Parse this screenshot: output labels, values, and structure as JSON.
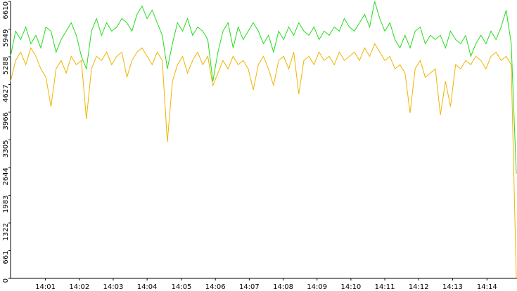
{
  "chart_data": {
    "type": "line",
    "xlim": [
      0,
      100
    ],
    "xticks": [
      {
        "value": 6.9,
        "label": "14:01"
      },
      {
        "value": 13.6,
        "label": "14:02"
      },
      {
        "value": 20.3,
        "label": "14:03"
      },
      {
        "value": 27.0,
        "label": "14:04"
      },
      {
        "value": 33.8,
        "label": "14:05"
      },
      {
        "value": 40.5,
        "label": "14:06"
      },
      {
        "value": 47.2,
        "label": "14:07"
      },
      {
        "value": 53.9,
        "label": "14:08"
      },
      {
        "value": 60.6,
        "label": "14:09"
      },
      {
        "value": 67.3,
        "label": "14:10"
      },
      {
        "value": 74.0,
        "label": "14:11"
      },
      {
        "value": 80.7,
        "label": "14:12"
      },
      {
        "value": 87.4,
        "label": "14:13"
      },
      {
        "value": 94.2,
        "label": "14:14"
      }
    ],
    "ylim": [
      0,
      6610
    ],
    "yticks": [
      0,
      661,
      1322,
      1983,
      2644,
      3305,
      3966,
      4627,
      5288,
      5949,
      6610
    ],
    "series": [
      {
        "color": "#22dd1a",
        "values": [
          5300,
          5900,
          5700,
          6000,
          5600,
          5800,
          5500,
          6000,
          5900,
          5400,
          5700,
          5900,
          6100,
          5800,
          5300,
          5000,
          5900,
          6200,
          5800,
          6100,
          5900,
          6000,
          6200,
          6100,
          5900,
          6300,
          6500,
          6200,
          6400,
          6100,
          5800,
          5000,
          5600,
          6100,
          5900,
          6200,
          5800,
          6000,
          5900,
          5700,
          4700,
          5400,
          5900,
          6100,
          5500,
          6000,
          5700,
          5900,
          6100,
          5900,
          5600,
          5800,
          5400,
          5900,
          5700,
          6000,
          5800,
          6100,
          5900,
          5800,
          6000,
          5700,
          5900,
          5800,
          6000,
          5900,
          6200,
          6000,
          5900,
          6100,
          6300,
          6000,
          6610,
          6200,
          5900,
          6100,
          5700,
          5500,
          5800,
          5500,
          5900,
          6000,
          5600,
          5800,
          5700,
          5800,
          5500,
          5900,
          5700,
          5600,
          5800,
          5300,
          5600,
          5800,
          5600,
          5900,
          5700,
          6000,
          6400,
          5600,
          2500
        ]
      },
      {
        "color": "#f0b400",
        "values": [
          4700,
          5200,
          5400,
          5100,
          5500,
          5300,
          5000,
          4800,
          4100,
          5000,
          5200,
          4900,
          5300,
          5100,
          5200,
          3800,
          5000,
          5300,
          5200,
          5400,
          5100,
          5300,
          5400,
          4800,
          5200,
          5400,
          5500,
          5300,
          5100,
          5400,
          5200,
          3250,
          4700,
          5100,
          5300,
          4900,
          5200,
          5400,
          5100,
          5300,
          4600,
          4900,
          5200,
          5000,
          5300,
          5100,
          5200,
          5000,
          4500,
          5100,
          5300,
          5000,
          4600,
          5200,
          5300,
          5000,
          5400,
          4400,
          5200,
          5300,
          5100,
          5400,
          5200,
          5300,
          5100,
          5400,
          5200,
          5300,
          5400,
          5200,
          5500,
          5300,
          5600,
          5400,
          5200,
          5300,
          5000,
          5100,
          4900,
          3950,
          5000,
          5200,
          4800,
          4900,
          5000,
          3900,
          4700,
          4100,
          5100,
          5000,
          5200,
          5100,
          5300,
          5200,
          5000,
          5300,
          5400,
          5200,
          5300,
          5100,
          0
        ]
      }
    ]
  }
}
